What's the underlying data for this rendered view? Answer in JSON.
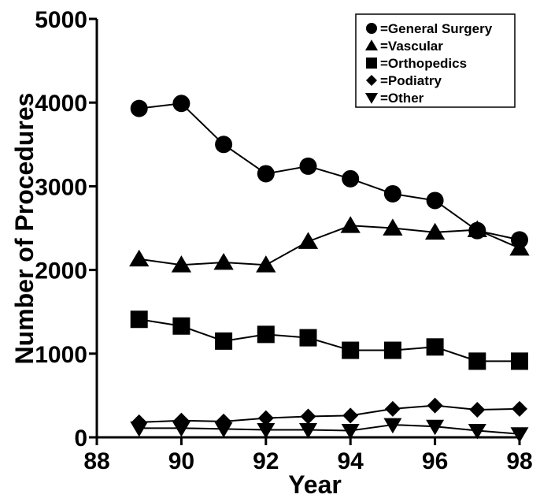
{
  "chart_data": {
    "type": "line",
    "title": "",
    "xlabel": "Year",
    "ylabel": "Number of Procedures",
    "xlim": [
      88,
      98
    ],
    "ylim": [
      0,
      5000
    ],
    "x_ticks": [
      "88",
      "90",
      "92",
      "94",
      "96",
      "98"
    ],
    "y_ticks": [
      "0",
      "1000",
      "2000",
      "3000",
      "4000",
      "5000"
    ],
    "grid": false,
    "legend_position": "top-right",
    "x": [
      89,
      90,
      91,
      92,
      93,
      94,
      95,
      96,
      97,
      98
    ],
    "series": [
      {
        "name": "=General Surgery",
        "marker": "circle",
        "values": [
          3930,
          3990,
          3500,
          3150,
          3240,
          3090,
          2910,
          2830,
          2470,
          2360
        ]
      },
      {
        "name": "=Vascular",
        "marker": "triangle-up",
        "values": [
          2130,
          2060,
          2090,
          2060,
          2340,
          2530,
          2500,
          2450,
          2480,
          2260
        ]
      },
      {
        "name": "=Orthopedics",
        "marker": "square",
        "values": [
          1410,
          1330,
          1150,
          1230,
          1190,
          1040,
          1040,
          1080,
          910,
          910
        ]
      },
      {
        "name": "=Podiatry",
        "marker": "diamond",
        "values": [
          180,
          200,
          190,
          230,
          250,
          260,
          340,
          380,
          330,
          340
        ]
      },
      {
        "name": "=Other",
        "marker": "triangle-down",
        "values": [
          110,
          110,
          100,
          90,
          90,
          80,
          150,
          130,
          80,
          40
        ]
      }
    ]
  }
}
